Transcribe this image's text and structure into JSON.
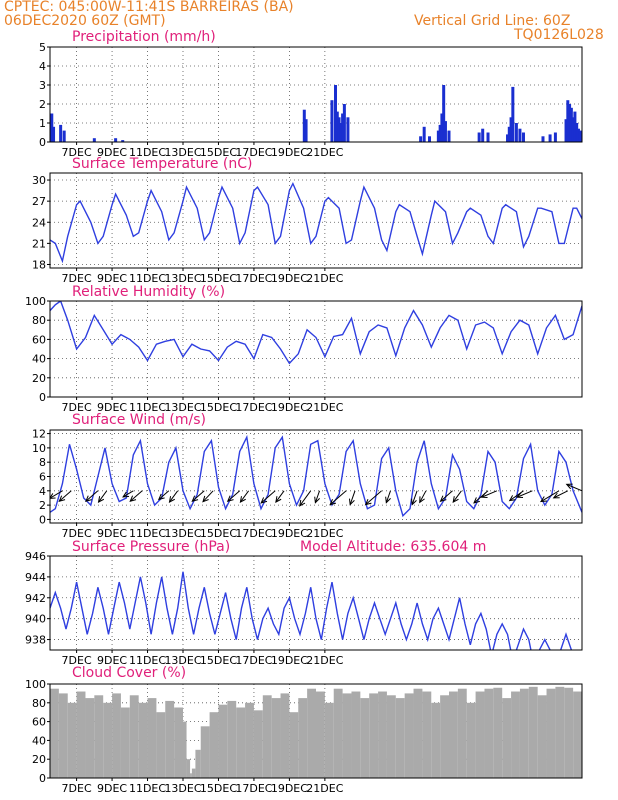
{
  "header": {
    "line1_left": "CPTEC:  045:00W-11:41S  BARREIRAS (BA)",
    "line2_left": "06DEC2020 60Z (GMT)",
    "line2_right": "Vertical Grid Line: 60Z",
    "line3_right": "TQ0126L028"
  },
  "colors": {
    "header": "#e8822a",
    "panel_title": "#e0207a",
    "line": "#2f3fe0",
    "bar": "#1a2fd0",
    "cloud": "#aaaaaa"
  },
  "date_labels": [
    "7DEC",
    "9DEC",
    "11DEC",
    "13DEC",
    "15DEC",
    "17DEC",
    "19DEC",
    "21DEC"
  ],
  "chart_data": [
    {
      "type": "bar",
      "title": "Precipitation (mm/h)",
      "ylim": [
        0,
        5
      ],
      "yticks": [
        0,
        1,
        2,
        3,
        4,
        5
      ],
      "grid": "dotted",
      "x_unit": "days since 06DEC2020 00Z",
      "xlim": [
        0.25,
        15.25
      ],
      "x": [
        0.3,
        0.35,
        0.55,
        0.65,
        1.5,
        2.1,
        2.3,
        7.42,
        7.47,
        8.2,
        8.3,
        8.35,
        8.4,
        8.45,
        8.5,
        8.55,
        8.65,
        10.7,
        10.8,
        10.95,
        11.2,
        11.25,
        11.3,
        11.35,
        11.4,
        11.5,
        12.35,
        12.45,
        12.6,
        13.15,
        13.2,
        13.25,
        13.3,
        13.4,
        13.5,
        13.6,
        14.15,
        14.35,
        14.5,
        14.8,
        14.85,
        14.9,
        14.95,
        15.0,
        15.05,
        15.1,
        15.15,
        15.2
      ],
      "values": [
        1.5,
        0.8,
        0.9,
        0.6,
        0.2,
        0.2,
        0.1,
        1.7,
        1.2,
        2.2,
        3.0,
        1.6,
        1.3,
        1.0,
        1.5,
        2.0,
        1.3,
        0.3,
        0.8,
        0.3,
        0.6,
        0.9,
        1.5,
        3.0,
        1.1,
        0.6,
        0.5,
        0.7,
        0.5,
        0.4,
        0.8,
        1.3,
        2.9,
        1.0,
        0.7,
        0.5,
        0.3,
        0.4,
        0.5,
        1.2,
        2.2,
        2.0,
        1.8,
        1.3,
        1.6,
        1.0,
        0.7,
        0.6
      ]
    },
    {
      "type": "line",
      "title": "Surface Temperature (nC)",
      "ylim": [
        17.5,
        31
      ],
      "yticks": [
        18,
        21,
        24,
        27,
        30
      ],
      "grid": "dotted",
      "x_unit": "days since 06DEC2020 00Z",
      "xlim": [
        0.25,
        15.25
      ],
      "x": [
        0.25,
        0.4,
        0.6,
        0.75,
        1.0,
        1.1,
        1.4,
        1.6,
        1.75,
        2.0,
        2.1,
        2.4,
        2.6,
        2.75,
        3.0,
        3.1,
        3.4,
        3.6,
        3.75,
        4.0,
        4.1,
        4.4,
        4.6,
        4.75,
        5.0,
        5.1,
        5.4,
        5.6,
        5.75,
        6.0,
        6.1,
        6.4,
        6.6,
        6.75,
        7.0,
        7.1,
        7.4,
        7.6,
        7.75,
        8.0,
        8.1,
        8.4,
        8.6,
        8.75,
        9.0,
        9.1,
        9.4,
        9.6,
        9.75,
        10.0,
        10.1,
        10.4,
        10.6,
        10.75,
        11.0,
        11.1,
        11.4,
        11.6,
        11.75,
        12.0,
        12.1,
        12.4,
        12.6,
        12.75,
        13.0,
        13.1,
        13.4,
        13.6,
        13.75,
        14.0,
        14.1,
        14.4,
        14.6,
        14.75,
        15.0,
        15.1,
        15.25
      ],
      "values": [
        21.5,
        21.0,
        18.5,
        22.0,
        26.5,
        27.0,
        24.0,
        21.0,
        22.0,
        26.5,
        28.0,
        25.0,
        22.0,
        22.5,
        27.0,
        28.5,
        25.5,
        21.5,
        22.5,
        27.0,
        29.0,
        26.0,
        21.5,
        22.5,
        27.5,
        29.0,
        26.0,
        21.0,
        22.5,
        28.5,
        29.0,
        26.5,
        21.0,
        22.0,
        28.5,
        29.5,
        26.0,
        21.0,
        22.0,
        27.0,
        27.5,
        26.0,
        21.0,
        21.5,
        27.0,
        29.0,
        26.0,
        21.5,
        20.0,
        25.5,
        26.5,
        25.5,
        22.0,
        19.5,
        25.0,
        27.0,
        25.5,
        21.0,
        22.5,
        25.5,
        26.0,
        25.0,
        22.0,
        21.0,
        26.0,
        26.5,
        25.5,
        20.5,
        22.0,
        26.0,
        26.0,
        25.5,
        21.0,
        21.0,
        26.0,
        26.0,
        24.5
      ]
    },
    {
      "type": "line",
      "title": "Relative Humidity (%)",
      "ylim": [
        0,
        100
      ],
      "yticks": [
        0,
        20,
        40,
        60,
        80,
        100
      ],
      "grid": "dotted",
      "x_unit": "days since 06DEC2020 00Z",
      "xlim": [
        0.25,
        15.25
      ],
      "x": [
        0.25,
        0.4,
        0.55,
        0.75,
        1.0,
        1.25,
        1.5,
        1.75,
        2.0,
        2.25,
        2.5,
        2.75,
        3.0,
        3.25,
        3.5,
        3.75,
        4.0,
        4.25,
        4.5,
        4.75,
        5.0,
        5.25,
        5.5,
        5.75,
        6.0,
        6.25,
        6.5,
        6.75,
        7.0,
        7.25,
        7.5,
        7.75,
        8.0,
        8.25,
        8.5,
        8.75,
        9.0,
        9.25,
        9.5,
        9.75,
        10.0,
        10.25,
        10.5,
        10.75,
        11.0,
        11.25,
        11.5,
        11.75,
        12.0,
        12.25,
        12.5,
        12.75,
        13.0,
        13.25,
        13.5,
        13.75,
        14.0,
        14.25,
        14.5,
        14.75,
        15.0,
        15.25
      ],
      "values": [
        90,
        96,
        100,
        80,
        50,
        62,
        85,
        70,
        55,
        65,
        60,
        52,
        38,
        55,
        58,
        60,
        42,
        55,
        50,
        48,
        38,
        52,
        58,
        55,
        40,
        65,
        62,
        50,
        35,
        45,
        70,
        62,
        42,
        63,
        65,
        82,
        45,
        68,
        75,
        72,
        43,
        72,
        90,
        75,
        52,
        72,
        85,
        80,
        50,
        75,
        78,
        72,
        45,
        68,
        80,
        75,
        45,
        72,
        85,
        60,
        65,
        95
      ]
    },
    {
      "type": "line",
      "title": "Surface Wind (m/s)",
      "ylim": [
        -0.5,
        12.5
      ],
      "yticks": [
        0,
        2,
        4,
        6,
        8,
        10,
        12
      ],
      "grid": "dotted",
      "x_unit": "days since 06DEC2020 00Z",
      "xlim": [
        0.25,
        15.25
      ],
      "x": [
        0.25,
        0.4,
        0.6,
        0.8,
        1.0,
        1.2,
        1.4,
        1.6,
        1.8,
        2.0,
        2.2,
        2.4,
        2.6,
        2.8,
        3.0,
        3.2,
        3.4,
        3.6,
        3.8,
        4.0,
        4.2,
        4.4,
        4.6,
        4.8,
        5.0,
        5.2,
        5.4,
        5.6,
        5.8,
        6.0,
        6.2,
        6.4,
        6.6,
        6.8,
        7.0,
        7.2,
        7.4,
        7.6,
        7.8,
        8.0,
        8.2,
        8.4,
        8.6,
        8.8,
        9.0,
        9.2,
        9.4,
        9.6,
        9.8,
        10.0,
        10.2,
        10.4,
        10.6,
        10.8,
        11.0,
        11.2,
        11.4,
        11.6,
        11.8,
        12.0,
        12.2,
        12.4,
        12.6,
        12.8,
        13.0,
        13.2,
        13.4,
        13.6,
        13.8,
        14.0,
        14.2,
        14.4,
        14.6,
        14.8,
        15.0,
        15.25
      ],
      "values": [
        1.0,
        1.5,
        5.0,
        10.5,
        7.0,
        3.0,
        2.0,
        6.0,
        10.0,
        5.0,
        2.5,
        3.0,
        9.0,
        11.0,
        5.0,
        2.0,
        3.0,
        8.0,
        10.0,
        4.0,
        1.5,
        3.5,
        9.5,
        11.0,
        4.5,
        1.5,
        3.5,
        9.5,
        11.5,
        5.0,
        1.5,
        3.5,
        10.0,
        11.5,
        5.0,
        2.0,
        4.0,
        10.5,
        11.0,
        5.0,
        2.0,
        3.5,
        9.5,
        11.0,
        5.0,
        1.5,
        2.0,
        8.5,
        10.0,
        4.0,
        0.5,
        1.5,
        8.0,
        11.0,
        5.0,
        1.5,
        3.0,
        9.0,
        7.0,
        2.5,
        1.5,
        3.5,
        9.5,
        8.0,
        2.5,
        1.5,
        3.0,
        8.5,
        10.5,
        4.0,
        2.0,
        3.5,
        9.5,
        8.0,
        4.0,
        1.0
      ],
      "arrows_x": [
        0.6,
        0.85,
        1.6,
        1.85,
        2.6,
        2.85,
        3.6,
        3.85,
        4.6,
        4.85,
        5.6,
        5.85,
        6.6,
        6.85,
        7.6,
        7.85,
        8.6,
        8.85,
        9.6,
        9.85,
        10.6,
        10.85,
        11.6,
        11.85,
        12.6,
        12.85,
        13.6,
        13.85,
        14.6,
        14.85,
        15.25
      ],
      "arrows_speed": [
        5,
        6,
        6,
        6,
        4,
        6,
        5,
        6,
        6,
        6,
        6,
        6,
        7,
        6,
        8,
        6,
        8,
        7,
        8,
        6,
        7,
        6,
        6,
        6,
        7,
        5,
        6,
        5,
        7,
        5,
        5
      ],
      "arrows_dir_deg": [
        50,
        60,
        60,
        70,
        50,
        60,
        60,
        70,
        60,
        65,
        60,
        70,
        60,
        70,
        70,
        80,
        60,
        80,
        60,
        80,
        80,
        75,
        60,
        70,
        60,
        40,
        55,
        40,
        50,
        45,
        320
      ]
    },
    {
      "type": "line",
      "title": "Surface Pressure (hPa)",
      "subtitle": "Model Altitude: 635.604 m",
      "ylim": [
        937,
        946
      ],
      "yticks": [
        938,
        940,
        942,
        944,
        946
      ],
      "grid": "dotted",
      "x_unit": "days since 06DEC2020 00Z",
      "xlim": [
        0.25,
        15.25
      ],
      "x": [
        0.25,
        0.4,
        0.55,
        0.7,
        0.85,
        1.0,
        1.15,
        1.3,
        1.45,
        1.6,
        1.75,
        1.9,
        2.05,
        2.2,
        2.35,
        2.5,
        2.65,
        2.8,
        2.95,
        3.1,
        3.25,
        3.4,
        3.55,
        3.7,
        3.85,
        4.0,
        4.15,
        4.3,
        4.45,
        4.6,
        4.75,
        4.9,
        5.05,
        5.2,
        5.35,
        5.5,
        5.65,
        5.8,
        5.95,
        6.1,
        6.25,
        6.4,
        6.55,
        6.7,
        6.85,
        7.0,
        7.15,
        7.3,
        7.45,
        7.6,
        7.75,
        7.9,
        8.05,
        8.2,
        8.35,
        8.5,
        8.65,
        8.8,
        8.95,
        9.1,
        9.25,
        9.4,
        9.55,
        9.7,
        9.85,
        10.0,
        10.15,
        10.3,
        10.45,
        10.6,
        10.75,
        10.9,
        11.05,
        11.2,
        11.35,
        11.5,
        11.65,
        11.8,
        11.95,
        12.1,
        12.25,
        12.4,
        12.55,
        12.7,
        12.85,
        13.0,
        13.15,
        13.3,
        13.45,
        13.6,
        13.75,
        13.9,
        14.05,
        14.2,
        14.35,
        14.5,
        14.65,
        14.8,
        14.95,
        15.1,
        15.25
      ],
      "values": [
        941.0,
        942.5,
        941.0,
        939.0,
        941.0,
        943.5,
        941.0,
        938.5,
        940.5,
        943.0,
        941.0,
        938.5,
        941.0,
        943.5,
        941.5,
        939.0,
        941.5,
        944.0,
        941.5,
        938.5,
        941.5,
        944.0,
        941.0,
        938.5,
        941.0,
        944.5,
        941.0,
        938.5,
        941.0,
        943.0,
        940.5,
        938.5,
        940.5,
        942.5,
        940.0,
        938.0,
        941.0,
        943.0,
        940.0,
        938.0,
        940.0,
        941.0,
        939.5,
        938.5,
        941.0,
        942.0,
        940.0,
        938.5,
        940.5,
        943.0,
        940.0,
        938.0,
        941.0,
        943.5,
        940.5,
        938.0,
        940.5,
        942.0,
        940.0,
        938.0,
        940.0,
        941.5,
        940.0,
        938.5,
        940.0,
        941.5,
        939.5,
        938.0,
        939.5,
        941.5,
        939.5,
        938.0,
        940.0,
        941.0,
        939.5,
        938.0,
        940.0,
        942.0,
        939.5,
        937.5,
        939.5,
        940.5,
        939.0,
        936.5,
        938.5,
        939.5,
        938.5,
        936.0,
        937.5,
        939.0,
        938.0,
        935.5,
        937.0,
        938.0,
        937.0,
        935.0,
        937.0,
        938.5,
        937.0,
        935.5,
        937.0
      ]
    },
    {
      "type": "area",
      "title": "Cloud Cover (%)",
      "ylim": [
        0,
        100
      ],
      "yticks": [
        0,
        20,
        40,
        60,
        80,
        100
      ],
      "grid": "dotted",
      "x_unit": "days since 06DEC2020 00Z",
      "xlim": [
        0.25,
        15.25
      ],
      "x": [
        0.25,
        0.5,
        0.75,
        1.0,
        1.25,
        1.5,
        1.75,
        2.0,
        2.25,
        2.5,
        2.75,
        3.0,
        3.25,
        3.5,
        3.75,
        4.0,
        4.1,
        4.2,
        4.25,
        4.35,
        4.5,
        4.75,
        5.0,
        5.25,
        5.5,
        5.75,
        6.0,
        6.25,
        6.5,
        6.75,
        7.0,
        7.25,
        7.5,
        7.75,
        8.0,
        8.25,
        8.5,
        8.75,
        9.0,
        9.25,
        9.5,
        9.75,
        10.0,
        10.25,
        10.5,
        10.75,
        11.0,
        11.25,
        11.5,
        11.75,
        12.0,
        12.25,
        12.5,
        12.75,
        13.0,
        13.25,
        13.5,
        13.75,
        14.0,
        14.25,
        14.5,
        14.75,
        15.0,
        15.25
      ],
      "values": [
        95,
        90,
        80,
        92,
        85,
        88,
        80,
        90,
        75,
        88,
        80,
        85,
        70,
        82,
        75,
        60,
        20,
        5,
        10,
        30,
        55,
        70,
        78,
        82,
        75,
        80,
        72,
        88,
        85,
        90,
        70,
        85,
        95,
        92,
        80,
        95,
        90,
        92,
        85,
        90,
        92,
        88,
        85,
        90,
        95,
        92,
        80,
        88,
        92,
        95,
        80,
        92,
        95,
        96,
        85,
        92,
        95,
        97,
        88,
        95,
        97,
        96,
        92,
        96
      ]
    }
  ]
}
